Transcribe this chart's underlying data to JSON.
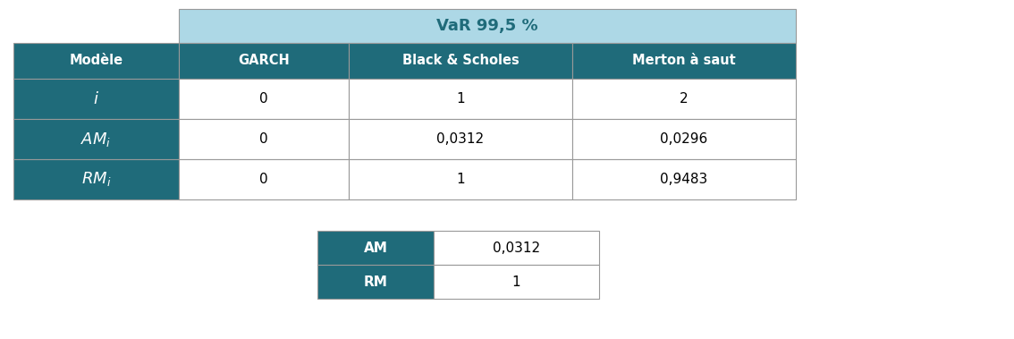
{
  "title_text": "VaR 99,5 %",
  "header_bg": "#ADD8E6",
  "teal": "#1F6B7A",
  "white": "#FFFFFF",
  "border_color": "#999999",
  "col_headers": [
    "Modèle",
    "GARCH",
    "Black & Scholes",
    "Merton à saut"
  ],
  "data": [
    [
      "0",
      "1",
      "2"
    ],
    [
      "0",
      "0,0312",
      "0,0296"
    ],
    [
      "0",
      "1",
      "0,9483"
    ]
  ],
  "summary_labels": [
    "AM",
    "RM"
  ],
  "summary_values": [
    "0,0312",
    "1"
  ],
  "fig_width": 11.34,
  "fig_height": 3.79,
  "dpi": 100
}
